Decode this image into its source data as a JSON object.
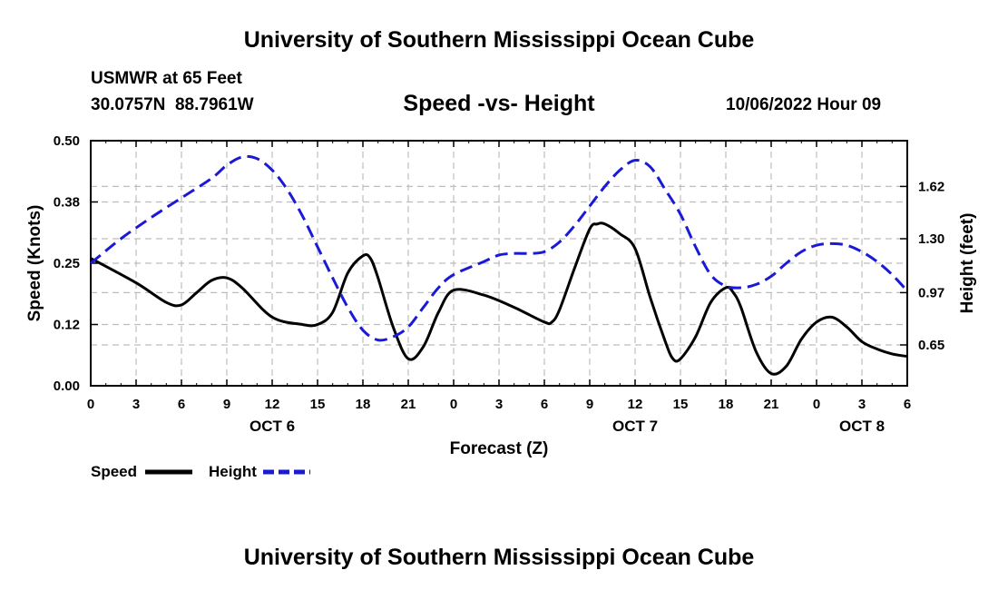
{
  "header": {
    "title": "University of Southern Mississippi Ocean Cube",
    "station": "USMWR at 65 Feet",
    "coordinates": "30.0757N  88.7961W",
    "subtitle": "Speed -vs- Height",
    "datetime": "10/06/2022 Hour 09"
  },
  "footer": {
    "title": "University of Southern Mississippi Ocean Cube"
  },
  "colors": {
    "speed": "#000000",
    "height": "#1a1ad6",
    "grid": "#bdbdbd"
  },
  "chart_data": {
    "type": "line",
    "xlabel": "Forecast (Z)",
    "ylabel_left": "Speed (Knots)",
    "ylabel_right": "Height (feet)",
    "x_range": [
      0,
      54
    ],
    "x_ticks": [
      0,
      3,
      6,
      9,
      12,
      15,
      18,
      21,
      24,
      27,
      30,
      33,
      36,
      39,
      42,
      45,
      48,
      51,
      54
    ],
    "x_tick_labels": [
      "0",
      "3",
      "6",
      "9",
      "12",
      "15",
      "18",
      "21",
      "0",
      "3",
      "6",
      "9",
      "12",
      "15",
      "18",
      "21",
      "0",
      "3",
      "6"
    ],
    "day_labels": [
      {
        "x": 12,
        "label": "OCT 6"
      },
      {
        "x": 36,
        "label": "OCT 7"
      },
      {
        "x": 51,
        "label": "OCT 8"
      }
    ],
    "y_left": {
      "range": [
        0,
        0.5
      ],
      "ticks": [
        0.0,
        0.125,
        0.25,
        0.375,
        0.5
      ],
      "tick_labels": [
        "0.00",
        "0.12",
        "0.25",
        "0.38",
        "0.50"
      ]
    },
    "y_right": {
      "range": [
        0.4,
        1.9
      ],
      "ticks": [
        0.65,
        0.97,
        1.3,
        1.62
      ],
      "tick_labels": [
        "0.65",
        "0.97",
        "1.30",
        "1.62"
      ]
    },
    "legend": {
      "position": "bottom-left",
      "items": [
        "Speed",
        "Height"
      ]
    },
    "series": [
      {
        "name": "Speed",
        "axis": "left",
        "x": [
          0,
          3,
          5,
          6,
          7,
          8,
          9,
          10,
          12,
          14,
          15,
          16,
          17,
          18,
          18.5,
          19,
          20,
          21,
          22,
          23,
          24,
          26,
          28,
          30,
          30.5,
          31,
          32,
          33,
          33.5,
          34,
          35,
          36,
          37,
          38,
          38.5,
          39,
          40,
          41,
          42,
          42.5,
          43,
          44,
          45,
          46,
          47,
          48,
          49,
          50,
          51,
          52,
          53,
          54
        ],
        "values": [
          0.26,
          0.21,
          0.17,
          0.165,
          0.19,
          0.215,
          0.22,
          0.2,
          0.14,
          0.125,
          0.125,
          0.15,
          0.23,
          0.265,
          0.26,
          0.22,
          0.12,
          0.055,
          0.08,
          0.15,
          0.195,
          0.185,
          0.16,
          0.13,
          0.13,
          0.155,
          0.24,
          0.32,
          0.33,
          0.33,
          0.31,
          0.28,
          0.18,
          0.09,
          0.055,
          0.055,
          0.1,
          0.17,
          0.2,
          0.19,
          0.16,
          0.07,
          0.025,
          0.04,
          0.095,
          0.13,
          0.14,
          0.12,
          0.09,
          0.075,
          0.065,
          0.06
        ]
      },
      {
        "name": "Height",
        "axis": "right",
        "x": [
          0,
          2,
          4,
          6,
          8,
          9,
          10,
          11,
          12,
          13,
          14,
          15,
          16,
          17,
          18,
          19,
          20,
          21,
          22,
          23,
          24,
          26,
          27,
          28,
          29,
          30,
          31,
          32,
          33,
          34,
          35,
          36,
          37,
          38,
          39,
          40,
          41,
          42,
          43,
          44,
          45,
          46,
          47,
          48,
          49,
          50,
          51,
          52,
          53,
          54
        ],
        "values": [
          1.15,
          1.3,
          1.43,
          1.55,
          1.67,
          1.75,
          1.8,
          1.79,
          1.72,
          1.6,
          1.44,
          1.25,
          1.06,
          0.88,
          0.74,
          0.68,
          0.7,
          0.76,
          0.88,
          1.0,
          1.08,
          1.16,
          1.2,
          1.21,
          1.21,
          1.22,
          1.28,
          1.38,
          1.5,
          1.62,
          1.72,
          1.78,
          1.74,
          1.6,
          1.45,
          1.25,
          1.08,
          1.01,
          1.0,
          1.02,
          1.07,
          1.15,
          1.22,
          1.26,
          1.27,
          1.26,
          1.22,
          1.16,
          1.08,
          0.98
        ]
      }
    ]
  }
}
